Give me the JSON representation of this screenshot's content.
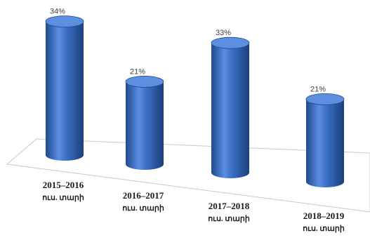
{
  "chart_data": {
    "type": "bar",
    "style": "3d-cylinder",
    "categories": [
      "2015–2016",
      "2016–2017",
      "2017–2018",
      "2018–2019"
    ],
    "category_sublabel": "ուս. տարի",
    "values": [
      34,
      21,
      33,
      21
    ],
    "data_labels": [
      "34%",
      "21%",
      "33%",
      "21%"
    ],
    "unit": "%",
    "ylim": [
      0,
      40
    ],
    "grid": false,
    "legend": "none",
    "title": "",
    "xlabel": "",
    "ylabel": "",
    "colors": {
      "bar": "#3c6fc4",
      "bar_dark": "#1f4a8e",
      "bar_top": "#5d8fe0"
    }
  }
}
